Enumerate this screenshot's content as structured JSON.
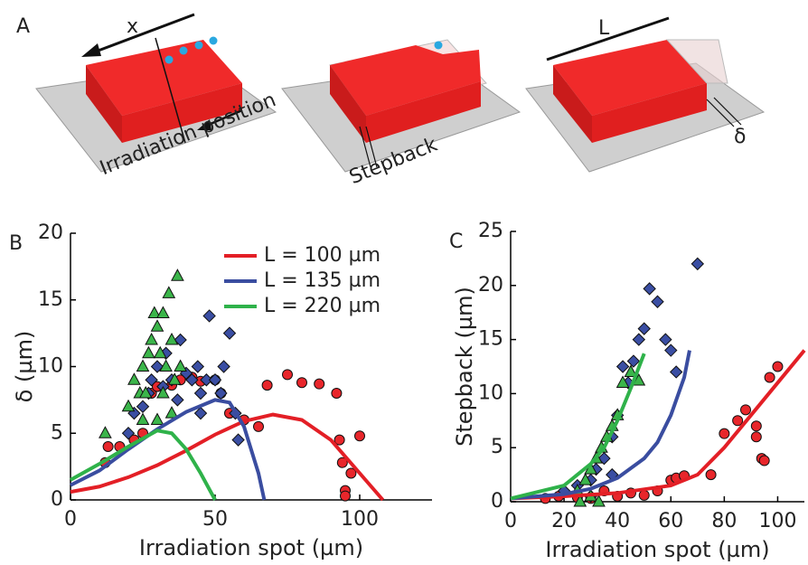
{
  "schematic": {
    "panel_label": "A",
    "labels": [
      "x",
      "Irradiation position",
      "Stepback",
      "L",
      "δ"
    ]
  },
  "chart_data": [
    {
      "type": "scatter",
      "panel_label": "B",
      "xlabel": "Irradiation spot (µm)",
      "ylabel": "δ (µm)",
      "xlim": [
        0,
        125
      ],
      "ylim": [
        0,
        20
      ],
      "xticks": [
        0,
        50,
        100
      ],
      "yticks": [
        0,
        5,
        10,
        15,
        20
      ],
      "legend": "upper right",
      "series": [
        {
          "name": "L = 100 µm",
          "color": "#e31f26",
          "x": [
            0,
            10,
            20,
            30,
            40,
            50,
            60,
            70,
            80,
            90,
            100,
            108
          ],
          "values": [
            0.6,
            1.0,
            1.7,
            2.6,
            3.7,
            4.9,
            5.9,
            6.4,
            6.0,
            4.5,
            2.0,
            0
          ]
        },
        {
          "name": "L = 135 µm",
          "color": "#3a4da0",
          "x": [
            0,
            10,
            20,
            30,
            40,
            50,
            55,
            60,
            65,
            67
          ],
          "values": [
            1.1,
            2.2,
            3.8,
            5.3,
            6.6,
            7.5,
            7.3,
            5.5,
            2.0,
            0
          ]
        },
        {
          "name": "L = 220 µm",
          "color": "#2fb24a",
          "x": [
            0,
            10,
            20,
            30,
            35,
            40,
            45,
            50
          ],
          "values": [
            1.5,
            2.7,
            4.0,
            5.2,
            5.0,
            3.8,
            2.0,
            0
          ]
        }
      ],
      "points": [
        {
          "marker": "circle",
          "color": "#e8262b",
          "x": [
            12,
            13,
            17,
            22,
            25,
            28,
            30,
            35,
            38,
            42,
            45,
            50,
            52,
            55,
            60,
            65,
            68,
            75,
            80,
            86,
            92,
            93,
            94,
            95,
            95,
            100,
            97
          ],
          "values": [
            2.8,
            4,
            4,
            4.5,
            5,
            8,
            8.5,
            8.6,
            9,
            9.2,
            8.9,
            9,
            8,
            6.5,
            6,
            5.5,
            8.6,
            9.4,
            8.8,
            8.7,
            8,
            4.5,
            2.8,
            0.7,
            0.3,
            4.8,
            2
          ]
        },
        {
          "marker": "diamond",
          "color": "#3a4ea3",
          "x": [
            20,
            22,
            25,
            27,
            28,
            30,
            32,
            33,
            35,
            37,
            38,
            40,
            42,
            44,
            45,
            47,
            48,
            50,
            52,
            53,
            55,
            57,
            58,
            45
          ],
          "values": [
            5,
            6.5,
            7,
            8,
            9,
            10,
            8.5,
            11,
            9,
            7.5,
            12,
            9.5,
            9,
            10,
            8,
            9,
            13.8,
            9,
            8,
            10,
            12.5,
            6.5,
            4.5,
            6.5
          ]
        },
        {
          "marker": "triangle",
          "color": "#3bb54a",
          "x": [
            20,
            22,
            24,
            25,
            27,
            28,
            29,
            30,
            31,
            32,
            33,
            34,
            35,
            36,
            37,
            38,
            30,
            35,
            26,
            32,
            25,
            12
          ],
          "values": [
            7,
            9,
            8,
            10,
            11,
            12,
            14,
            13,
            11,
            14,
            10,
            15.5,
            12,
            9,
            16.8,
            10,
            6,
            6.5,
            8,
            8,
            6,
            5
          ]
        }
      ]
    },
    {
      "type": "scatter",
      "panel_label": "C",
      "xlabel": "Irradiation spot (µm)",
      "ylabel": "Stepback (µm)",
      "xlim": [
        0,
        110
      ],
      "ylim": [
        0,
        25
      ],
      "xticks": [
        0,
        20,
        40,
        60,
        80,
        100
      ],
      "yticks": [
        0,
        5,
        10,
        15,
        20,
        25
      ],
      "series": [
        {
          "color": "#e31f26",
          "x": [
            0,
            20,
            40,
            60,
            70,
            80,
            90,
            100,
            110
          ],
          "values": [
            0.3,
            0.5,
            0.8,
            1.5,
            2.5,
            5,
            8,
            11,
            14
          ]
        },
        {
          "color": "#3a4da0",
          "x": [
            0,
            20,
            30,
            40,
            50,
            55,
            60,
            65,
            67
          ],
          "values": [
            0.3,
            0.7,
            1.2,
            2.2,
            4,
            5.5,
            8,
            11.5,
            14
          ]
        },
        {
          "color": "#2fb24a",
          "x": [
            0,
            20,
            30,
            35,
            40,
            45,
            50
          ],
          "values": [
            0.3,
            1.5,
            3.5,
            5,
            7.5,
            10.5,
            13.7
          ]
        }
      ],
      "points": [
        {
          "marker": "circle",
          "color": "#e8262b",
          "x": [
            13,
            18,
            25,
            30,
            35,
            40,
            45,
            50,
            55,
            60,
            62,
            65,
            75,
            80,
            85,
            88,
            92,
            92,
            94,
            95,
            97,
            100
          ],
          "values": [
            0.3,
            0.5,
            0.4,
            0.3,
            1,
            0.5,
            0.8,
            0.6,
            1,
            2,
            2.2,
            2.4,
            2.5,
            6.3,
            7.5,
            8.5,
            6,
            7,
            4,
            3.8,
            11.5,
            12.5
          ]
        },
        {
          "marker": "diamond",
          "color": "#3a4ea3",
          "x": [
            20,
            25,
            30,
            32,
            35,
            38,
            40,
            42,
            44,
            46,
            48,
            50,
            52,
            55,
            58,
            60,
            62,
            70,
            38,
            30
          ],
          "values": [
            1,
            1.5,
            2,
            3,
            4,
            6,
            8,
            12.5,
            11,
            13,
            15,
            16,
            19.7,
            18.5,
            15,
            14,
            12,
            22,
            2.5,
            0.5
          ]
        },
        {
          "marker": "triangle",
          "color": "#3bb54a",
          "x": [
            25,
            28,
            30,
            32,
            34,
            36,
            38,
            40,
            42,
            45,
            48,
            26,
            30,
            33
          ],
          "values": [
            1,
            2,
            3,
            4,
            5,
            6,
            7,
            8,
            11,
            12,
            11.2,
            0,
            0.5,
            0
          ]
        }
      ]
    }
  ]
}
